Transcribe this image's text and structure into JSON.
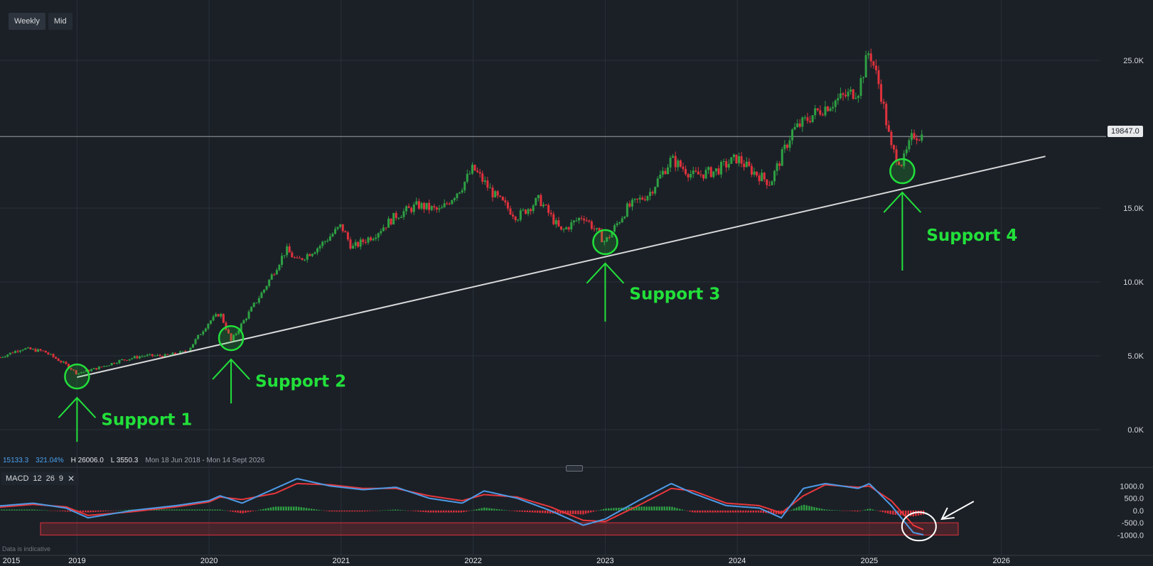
{
  "toolbar": {
    "timeframes": [
      "Weekly",
      "Mid"
    ]
  },
  "stats": {
    "last": "15133.3",
    "change_pct": "321.04%",
    "high": "H 26006.0",
    "low": "L 3550.3",
    "range": "Mon 18 Jun 2018 - Mon 14 Sept 2026"
  },
  "current_price_label": "19847.0",
  "macd_legend": {
    "name": "MACD",
    "fast": "12",
    "slow": "26",
    "signal": "9"
  },
  "footer_note": "Data is indicative",
  "colors": {
    "background": "#1b2027",
    "grid": "#2a3038",
    "up_candle": "#2ea043",
    "down_candle": "#e0323c",
    "annotation": "#22e03a",
    "trendline": "#d9d9d9",
    "macd_line": "#4d9be6",
    "signal_line": "#e8373c"
  },
  "chart_data": [
    {
      "type": "candlestick",
      "title": "",
      "xlabel": "",
      "ylabel": "",
      "x_ticks": [
        "2015",
        "2019",
        "2020",
        "2021",
        "2022",
        "2023",
        "2024",
        "2025",
        "2026"
      ],
      "y_ticks": [
        "25.0K",
        "15.0K",
        "10.0K",
        "5.0K",
        "0.0K"
      ],
      "xlim": [
        "2018-05",
        "2026-09"
      ],
      "ylim": [
        -1200,
        27500
      ],
      "grid": true,
      "close_series": {
        "x": [
          "2018-06",
          "2018-08",
          "2018-10",
          "2018-12",
          "2019-01",
          "2019-03",
          "2019-05",
          "2019-07",
          "2019-09",
          "2019-11",
          "2020-01",
          "2020-02",
          "2020-03",
          "2020-04",
          "2020-06",
          "2020-08",
          "2020-09",
          "2020-11",
          "2021-01",
          "2021-02",
          "2021-04",
          "2021-06",
          "2021-08",
          "2021-10",
          "2021-12",
          "2022-01",
          "2022-03",
          "2022-05",
          "2022-07",
          "2022-09",
          "2022-11",
          "2023-01",
          "2023-03",
          "2023-05",
          "2023-07",
          "2023-09",
          "2023-11",
          "2024-01",
          "2024-02",
          "2024-04",
          "2024-06",
          "2024-08",
          "2024-10",
          "2024-12",
          "2025-01",
          "2025-02",
          "2025-03",
          "2025-04",
          "2025-05",
          "2025-06"
        ],
        "y": [
          4900,
          5500,
          5300,
          4400,
          3800,
          4200,
          4700,
          5000,
          5000,
          5300,
          7300,
          7900,
          6000,
          7200,
          9500,
          12200,
          11400,
          12400,
          13800,
          12300,
          13200,
          14500,
          15200,
          14800,
          16500,
          17700,
          15800,
          14400,
          15600,
          13400,
          14500,
          12700,
          15000,
          16000,
          18300,
          17200,
          17500,
          18400,
          17700,
          16700,
          20200,
          21400,
          22300,
          23000,
          25700,
          23000,
          19000,
          18000,
          20000,
          19850
        ]
      },
      "trendline": {
        "from": {
          "x": "2019-01",
          "y": 3550
        },
        "to": {
          "x": "2026-05",
          "y": 18500
        }
      },
      "current_price": 19847.0,
      "annotations": [
        {
          "label": "Support 1",
          "x": "2019-01",
          "y": 3600
        },
        {
          "label": "Support 2",
          "x": "2020-03",
          "y": 6200
        },
        {
          "label": "Support 3",
          "x": "2023-01",
          "y": 12700
        },
        {
          "label": "Support 4",
          "x": "2025-04",
          "y": 17500
        }
      ]
    },
    {
      "type": "line",
      "title": "",
      "xlabel": "",
      "ylabel": "",
      "y_ticks": [
        "1000.0",
        "500.0",
        "0.0",
        "-500.0",
        "-1000.0"
      ],
      "ylim": [
        -1250,
        1300
      ],
      "series": [
        {
          "name": "MACD",
          "x": [
            "2018-05",
            "2018-09",
            "2018-12",
            "2019-02",
            "2019-06",
            "2019-10",
            "2020-01",
            "2020-02",
            "2020-04",
            "2020-07",
            "2020-09",
            "2020-12",
            "2021-03",
            "2021-06",
            "2021-09",
            "2021-12",
            "2022-02",
            "2022-05",
            "2022-08",
            "2022-11",
            "2023-01",
            "2023-04",
            "2023-07",
            "2023-09",
            "2023-12",
            "2024-03",
            "2024-05",
            "2024-07",
            "2024-09",
            "2024-12",
            "2025-01",
            "2025-03",
            "2025-05",
            "2025-06"
          ],
          "values": [
            150,
            300,
            100,
            -300,
            0,
            200,
            400,
            600,
            300,
            900,
            1300,
            1000,
            850,
            950,
            500,
            300,
            800,
            500,
            0,
            -600,
            -350,
            400,
            1100,
            700,
            200,
            100,
            -300,
            900,
            1100,
            900,
            1100,
            200,
            -900,
            -1000
          ]
        },
        {
          "name": "Signal",
          "x": [
            "2018-05",
            "2018-09",
            "2018-12",
            "2019-02",
            "2019-06",
            "2019-10",
            "2020-01",
            "2020-02",
            "2020-04",
            "2020-07",
            "2020-09",
            "2020-12",
            "2021-03",
            "2021-06",
            "2021-09",
            "2021-12",
            "2022-02",
            "2022-05",
            "2022-08",
            "2022-11",
            "2023-01",
            "2023-04",
            "2023-07",
            "2023-09",
            "2023-12",
            "2024-03",
            "2024-05",
            "2024-07",
            "2024-09",
            "2024-12",
            "2025-01",
            "2025-03",
            "2025-05",
            "2025-06"
          ],
          "values": [
            100,
            250,
            150,
            -200,
            -50,
            150,
            350,
            550,
            450,
            700,
            1100,
            1050,
            900,
            900,
            600,
            400,
            650,
            550,
            150,
            -400,
            -450,
            200,
            900,
            800,
            300,
            200,
            -100,
            600,
            1050,
            950,
            1000,
            400,
            -600,
            -800
          ]
        }
      ]
    }
  ]
}
